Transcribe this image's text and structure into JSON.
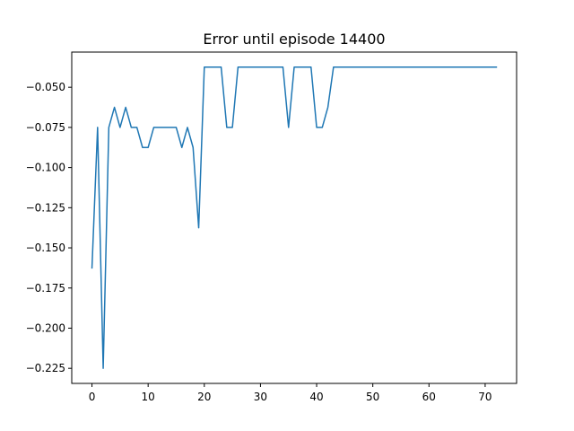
{
  "chart_data": {
    "type": "line",
    "title": "Error until episode 14400",
    "xlabel": "",
    "ylabel": "",
    "xlim": [
      -3.6,
      75.6
    ],
    "ylim": [
      -0.2344,
      -0.0281
    ],
    "xticks": [
      0,
      10,
      20,
      30,
      40,
      50,
      60,
      70
    ],
    "yticks": [
      -0.225,
      -0.2,
      -0.175,
      -0.15,
      -0.125,
      -0.1,
      -0.075,
      -0.05
    ],
    "ytick_labels": [
      "−0.225",
      "−0.200",
      "−0.175",
      "−0.150",
      "−0.125",
      "−0.100",
      "−0.075",
      "−0.050"
    ],
    "grid": false,
    "line_color": "#1f77b4",
    "series": [
      {
        "x": [
          0,
          1,
          2,
          3,
          4,
          5,
          6,
          7,
          8,
          9,
          10,
          11,
          12,
          13,
          14,
          15,
          16,
          17,
          18,
          19,
          20,
          21,
          22,
          23,
          24,
          25,
          26,
          27,
          28,
          29,
          30,
          31,
          32,
          33,
          34,
          35,
          36,
          37,
          38,
          39,
          40,
          41,
          42,
          43,
          44,
          45,
          46,
          47,
          48,
          49,
          50,
          51,
          52,
          53,
          54,
          55,
          56,
          57,
          58,
          59,
          60,
          61,
          62,
          63,
          64,
          65,
          66,
          67,
          68,
          69,
          70,
          71,
          72
        ],
        "values": [
          -0.1625,
          -0.075,
          -0.225,
          -0.075,
          -0.0625,
          -0.075,
          -0.0625,
          -0.075,
          -0.075,
          -0.0875,
          -0.0875,
          -0.075,
          -0.075,
          -0.075,
          -0.075,
          -0.075,
          -0.0875,
          -0.075,
          -0.0875,
          -0.1375,
          -0.0375,
          -0.0375,
          -0.0375,
          -0.0375,
          -0.075,
          -0.075,
          -0.0375,
          -0.0375,
          -0.0375,
          -0.0375,
          -0.0375,
          -0.0375,
          -0.0375,
          -0.0375,
          -0.0375,
          -0.075,
          -0.0375,
          -0.0375,
          -0.0375,
          -0.0375,
          -0.075,
          -0.075,
          -0.0625,
          -0.0375,
          -0.0375,
          -0.0375,
          -0.0375,
          -0.0375,
          -0.0375,
          -0.0375,
          -0.0375,
          -0.0375,
          -0.0375,
          -0.0375,
          -0.0375,
          -0.0375,
          -0.0375,
          -0.0375,
          -0.0375,
          -0.0375,
          -0.0375,
          -0.0375,
          -0.0375,
          -0.0375,
          -0.0375,
          -0.0375,
          -0.0375,
          -0.0375,
          -0.0375,
          -0.0375,
          -0.0375,
          -0.0375,
          -0.0375
        ]
      }
    ]
  }
}
